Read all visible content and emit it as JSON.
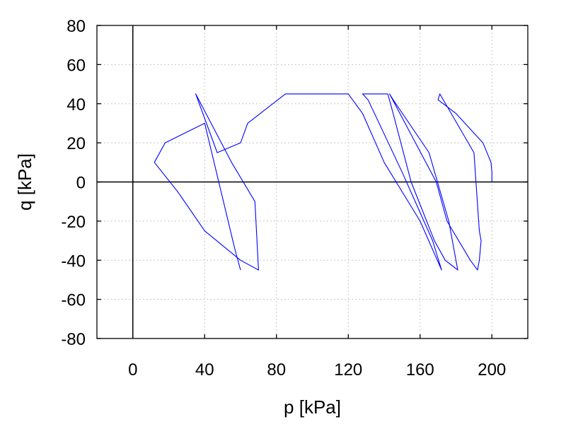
{
  "chart_data": {
    "type": "line",
    "title": "",
    "xlabel": "p [kPa]",
    "ylabel": "q [kPa]",
    "xlim": [
      -20,
      220
    ],
    "ylim": [
      -80,
      80
    ],
    "xticks": [
      0,
      40,
      80,
      120,
      160,
      200
    ],
    "xtick_labels": [
      "0",
      "40",
      "80",
      "120",
      "160",
      "200"
    ],
    "yticks": [
      -80,
      -60,
      -40,
      -20,
      0,
      20,
      40,
      60,
      80
    ],
    "ytick_labels": [
      "-80",
      "-60",
      "-40",
      "-20",
      "0",
      "20",
      "40",
      "60",
      "80"
    ],
    "grid": true,
    "zero_lines": true,
    "legend": "none",
    "colors": {
      "series": "#0000ff",
      "axes": "#000000",
      "grid": "#c8c8c8"
    },
    "series": [
      {
        "style": "cyclic stress path (converging toward failure envelope)",
        "x": [
          200,
          200,
          199.5,
          195,
          180,
          170,
          171,
          190,
          193,
          194,
          193,
          192,
          188,
          175,
          169,
          143,
          145,
          165,
          176,
          181,
          174,
          168,
          155,
          145,
          142,
          128,
          131,
          150,
          167,
          172,
          160,
          140,
          128,
          120,
          85,
          64,
          60,
          47,
          35,
          55,
          68,
          70,
          60,
          40,
          25,
          12,
          18,
          40,
          57,
          60
        ],
        "y": [
          0,
          5,
          10,
          20,
          35,
          42,
          45,
          15,
          -25,
          -30,
          -40,
          -45,
          -40,
          -20,
          0,
          45,
          42,
          15,
          -20,
          -45,
          -40,
          -30,
          0,
          35,
          45,
          45,
          42,
          5,
          -30,
          -45,
          -20,
          10,
          35,
          45,
          45,
          30,
          20,
          15,
          45,
          10,
          -10,
          -45,
          -40,
          -25,
          -5,
          10,
          20,
          30,
          -35,
          -45
        ]
      }
    ]
  }
}
